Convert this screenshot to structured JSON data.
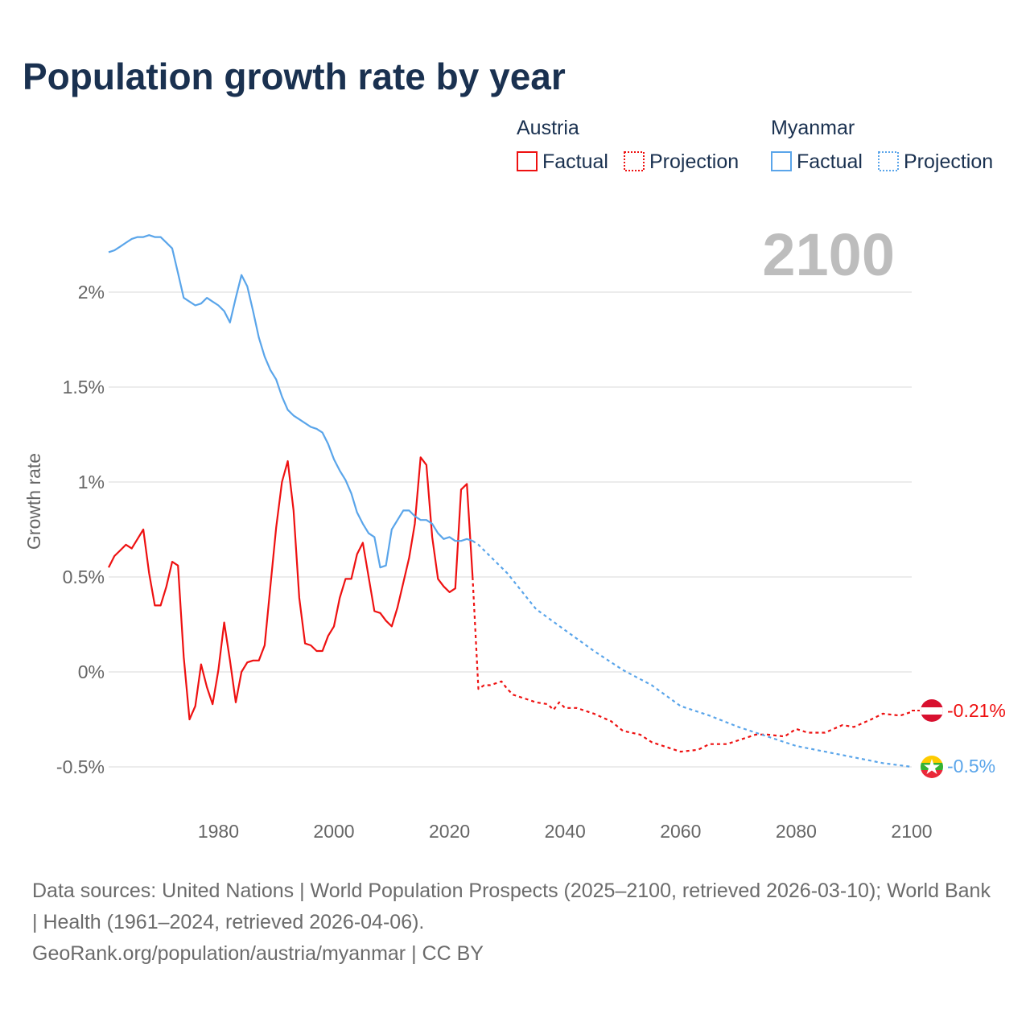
{
  "title": "Population growth rate by year",
  "legend": {
    "groups": [
      {
        "name": "Austria",
        "factual": "Factual",
        "projection": "Projection",
        "color": "#ee1111"
      },
      {
        "name": "Myanmar",
        "factual": "Factual",
        "projection": "Projection",
        "color": "#5aa5ea"
      }
    ]
  },
  "year_label": "2100",
  "end_labels": {
    "austria": "-0.21%",
    "myanmar": "-0.5%"
  },
  "sources": {
    "line1": "Data sources: United Nations | World Population Prospects (2025–2100, retrieved 2026-03-10); World Bank | Health (1961–2024, retrieved 2026-04-06).",
    "line2": "GeoRank.org/population/austria/myanmar | CC BY"
  },
  "chart_data": {
    "type": "line",
    "title": "Population growth rate by year",
    "xlabel": "",
    "ylabel": "Growth rate",
    "xlim": [
      1961,
      2100
    ],
    "ylim": [
      -0.65,
      2.3
    ],
    "x_ticks": [
      "1980",
      "2000",
      "2020",
      "2040",
      "2060",
      "2080",
      "2100"
    ],
    "y_ticks": [
      {
        "v": 2,
        "label": "2%"
      },
      {
        "v": 1.5,
        "label": "1.5%"
      },
      {
        "v": 1,
        "label": "1%"
      },
      {
        "v": 0.5,
        "label": "0.5%"
      },
      {
        "v": 0,
        "label": "0%"
      },
      {
        "v": -0.5,
        "label": "-0.5%"
      }
    ],
    "grid": true,
    "legend_position": "top-right",
    "series": [
      {
        "name": "Austria Factual",
        "color": "#ee1111",
        "dashed": false,
        "x_start": 1961,
        "values": [
          0.55,
          0.61,
          0.64,
          0.67,
          0.65,
          0.7,
          0.75,
          0.52,
          0.35,
          0.35,
          0.45,
          0.58,
          0.56,
          0.08,
          -0.25,
          -0.18,
          0.04,
          -0.08,
          -0.17,
          0.01,
          0.26,
          0.06,
          -0.16,
          0.0,
          0.05,
          0.06,
          0.06,
          0.14,
          0.45,
          0.76,
          1.0,
          1.11,
          0.85,
          0.39,
          0.15,
          0.14,
          0.11,
          0.11,
          0.19,
          0.24,
          0.39,
          0.49,
          0.49,
          0.62,
          0.68,
          0.5,
          0.32,
          0.31,
          0.27,
          0.24,
          0.34,
          0.47,
          0.6,
          0.78,
          1.13,
          1.09,
          0.71,
          0.49,
          0.45,
          0.42,
          0.44,
          0.96,
          0.99,
          0.5
        ]
      },
      {
        "name": "Austria Projection",
        "color": "#ee1111",
        "dashed": true,
        "x": [
          2024,
          2025,
          2026,
          2027,
          2028,
          2029,
          2030,
          2031,
          2032,
          2033,
          2034,
          2035,
          2037,
          2038,
          2039,
          2040,
          2042,
          2045,
          2048,
          2050,
          2053,
          2055,
          2058,
          2060,
          2063,
          2065,
          2068,
          2070,
          2073,
          2075,
          2078,
          2080,
          2082,
          2085,
          2088,
          2090,
          2093,
          2095,
          2098,
          2100
        ],
        "values": [
          0.5,
          -0.09,
          -0.07,
          -0.07,
          -0.06,
          -0.05,
          -0.09,
          -0.12,
          -0.13,
          -0.14,
          -0.15,
          -0.16,
          -0.17,
          -0.2,
          -0.16,
          -0.19,
          -0.19,
          -0.22,
          -0.26,
          -0.31,
          -0.33,
          -0.37,
          -0.4,
          -0.42,
          -0.41,
          -0.38,
          -0.38,
          -0.36,
          -0.33,
          -0.33,
          -0.34,
          -0.3,
          -0.32,
          -0.32,
          -0.28,
          -0.29,
          -0.25,
          -0.22,
          -0.23,
          -0.21
        ]
      },
      {
        "name": "Myanmar Factual",
        "color": "#5aa5ea",
        "dashed": false,
        "x_start": 1961,
        "values": [
          2.21,
          2.22,
          2.24,
          2.26,
          2.28,
          2.29,
          2.29,
          2.3,
          2.29,
          2.29,
          2.26,
          2.23,
          2.1,
          1.97,
          1.95,
          1.93,
          1.94,
          1.97,
          1.95,
          1.93,
          1.9,
          1.84,
          1.97,
          2.09,
          2.03,
          1.9,
          1.76,
          1.66,
          1.59,
          1.54,
          1.45,
          1.38,
          1.35,
          1.33,
          1.31,
          1.29,
          1.28,
          1.26,
          1.2,
          1.12,
          1.06,
          1.01,
          0.94,
          0.84,
          0.78,
          0.73,
          0.71,
          0.55,
          0.56,
          0.75,
          0.8,
          0.85,
          0.85,
          0.82,
          0.8,
          0.8,
          0.78,
          0.73,
          0.7,
          0.71,
          0.69,
          0.69,
          0.7,
          0.69
        ]
      },
      {
        "name": "Myanmar Projection",
        "color": "#5aa5ea",
        "dashed": true,
        "x": [
          2024,
          2025,
          2030,
          2035,
          2040,
          2045,
          2050,
          2055,
          2060,
          2065,
          2070,
          2075,
          2080,
          2085,
          2090,
          2095,
          2100
        ],
        "values": [
          0.69,
          0.67,
          0.52,
          0.33,
          0.22,
          0.11,
          0.01,
          -0.07,
          -0.18,
          -0.23,
          -0.29,
          -0.34,
          -0.39,
          -0.42,
          -0.45,
          -0.48,
          -0.5
        ]
      }
    ]
  }
}
